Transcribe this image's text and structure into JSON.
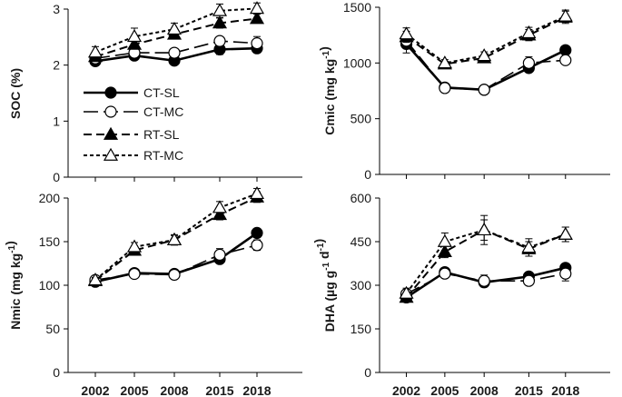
{
  "chart_data": [
    {
      "type": "line",
      "id": "soc",
      "ylabel_main": "SOC",
      "ylabel_unit": " (%)",
      "ylim": [
        0,
        3
      ],
      "yticks": [
        0,
        1,
        2,
        3
      ],
      "x": [
        "2002",
        "2005",
        "2008",
        "2015",
        "2018"
      ],
      "grid": false,
      "legend": "center-left",
      "series": [
        {
          "name": "CT-SL",
          "values": [
            2.07,
            2.17,
            2.08,
            2.28,
            2.3
          ],
          "err": [
            0.05,
            0.06,
            0.06,
            0.09,
            0.08
          ]
        },
        {
          "name": "CT-MC",
          "values": [
            2.12,
            2.22,
            2.22,
            2.43,
            2.39
          ],
          "err": [
            0.05,
            0.06,
            0.07,
            0.07,
            0.12
          ]
        },
        {
          "name": "RT-SL",
          "values": [
            2.15,
            2.37,
            2.55,
            2.75,
            2.83
          ],
          "err": [
            0.06,
            0.07,
            0.08,
            0.09,
            0.08
          ]
        },
        {
          "name": "RT-MC",
          "values": [
            2.23,
            2.51,
            2.64,
            2.97,
            3.01
          ],
          "err": [
            0.1,
            0.15,
            0.11,
            0.12,
            0.1
          ]
        }
      ]
    },
    {
      "type": "line",
      "id": "cmic",
      "ylabel_main": "Cmic",
      "ylabel_unit": " (mg kg-1)",
      "ylim": [
        0,
        1500
      ],
      "yticks": [
        0,
        500,
        1000,
        1500
      ],
      "x": [
        "2002",
        "2005",
        "2008",
        "2015",
        "2018"
      ],
      "grid": false,
      "series": [
        {
          "name": "CT-SL",
          "values": [
            1170,
            780,
            760,
            955,
            1115
          ],
          "err": [
            80,
            20,
            20,
            35,
            30
          ]
        },
        {
          "name": "CT-MC",
          "values": [
            1200,
            775,
            760,
            1000,
            1025
          ],
          "err": [
            60,
            20,
            20,
            55,
            30
          ]
        },
        {
          "name": "RT-SL",
          "values": [
            1235,
            990,
            1045,
            1250,
            1410
          ],
          "err": [
            50,
            25,
            30,
            50,
            55
          ]
        },
        {
          "name": "RT-MC",
          "values": [
            1260,
            1000,
            1065,
            1270,
            1420
          ],
          "err": [
            55,
            30,
            35,
            50,
            55
          ]
        }
      ]
    },
    {
      "type": "line",
      "id": "nmic",
      "ylabel_main": "Nmic",
      "ylabel_unit": " (mg kg-1)",
      "ylim": [
        0,
        200
      ],
      "yticks": [
        0,
        50,
        100,
        150,
        200
      ],
      "x": [
        "2002",
        "2005",
        "2008",
        "2015",
        "2018"
      ],
      "grid": false,
      "series": [
        {
          "name": "CT-SL",
          "values": [
            104,
            114,
            113,
            130,
            160
          ],
          "err": [
            3,
            3,
            3,
            4,
            5
          ]
        },
        {
          "name": "CT-MC",
          "values": [
            106,
            113,
            112,
            135,
            146
          ],
          "err": [
            3,
            3,
            3,
            7,
            6
          ]
        },
        {
          "name": "RT-SL",
          "values": [
            105,
            140,
            152,
            181,
            201
          ],
          "err": [
            3,
            5,
            5,
            6,
            6
          ]
        },
        {
          "name": "RT-MC",
          "values": [
            106,
            144,
            152,
            189,
            205
          ],
          "err": [
            3,
            5,
            6,
            7,
            6
          ]
        }
      ]
    },
    {
      "type": "line",
      "id": "dha",
      "ylabel_main": "DHA",
      "ylabel_unit": " (µg g-1 d-1)",
      "ylim": [
        0,
        600
      ],
      "yticks": [
        0,
        150,
        300,
        450,
        600
      ],
      "x": [
        "2002",
        "2005",
        "2008",
        "2015",
        "2018"
      ],
      "grid": false,
      "series": [
        {
          "name": "CT-SL",
          "values": [
            258,
            345,
            310,
            330,
            360
          ],
          "err": [
            12,
            15,
            15,
            15,
            15
          ]
        },
        {
          "name": "CT-MC",
          "values": [
            270,
            340,
            315,
            315,
            340
          ],
          "err": [
            15,
            15,
            20,
            15,
            25
          ]
        },
        {
          "name": "RT-SL",
          "values": [
            258,
            415,
            490,
            425,
            475
          ],
          "err": [
            12,
            20,
            35,
            25,
            25
          ]
        },
        {
          "name": "RT-MC",
          "values": [
            272,
            450,
            490,
            430,
            475
          ],
          "err": [
            18,
            30,
            50,
            30,
            25
          ]
        }
      ]
    }
  ]
}
